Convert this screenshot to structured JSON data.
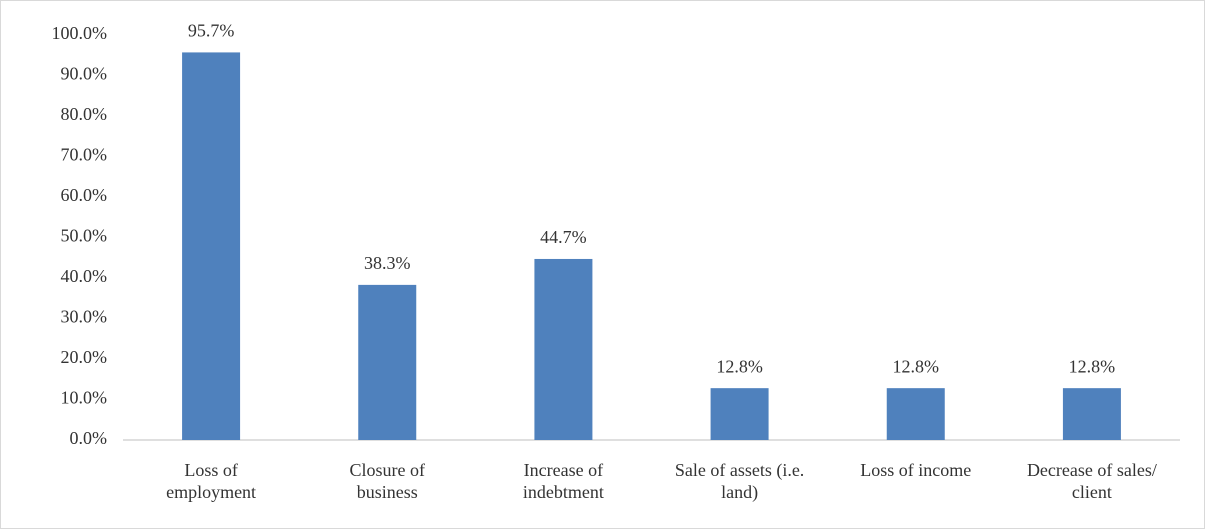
{
  "chart_data": {
    "type": "bar",
    "categories": [
      "Loss of employment",
      "Closure of business",
      "Increase of indebtment",
      "Sale of assets (i.e. land)",
      "Loss of income",
      "Decrease of sales/ client"
    ],
    "values": [
      95.7,
      38.3,
      44.7,
      12.8,
      12.8,
      12.8
    ],
    "value_labels": [
      "95.7%",
      "38.3%",
      "44.7%",
      "12.8%",
      "12.8%",
      "12.8%"
    ],
    "color": "#4f81bd",
    "ylim": [
      0,
      100
    ],
    "yticks": [
      {
        "value": 0,
        "label": "0.0%"
      },
      {
        "value": 10,
        "label": "10.0%"
      },
      {
        "value": 20,
        "label": "20.0%"
      },
      {
        "value": 30,
        "label": "30.0%"
      },
      {
        "value": 40,
        "label": "40.0%"
      },
      {
        "value": 50,
        "label": "50.0%"
      },
      {
        "value": 60,
        "label": "60.0%"
      },
      {
        "value": 70,
        "label": "70.0%"
      },
      {
        "value": 80,
        "label": "80.0%"
      },
      {
        "value": 90,
        "label": "90.0%"
      },
      {
        "value": 100,
        "label": "100.0%"
      }
    ],
    "grid": false
  }
}
